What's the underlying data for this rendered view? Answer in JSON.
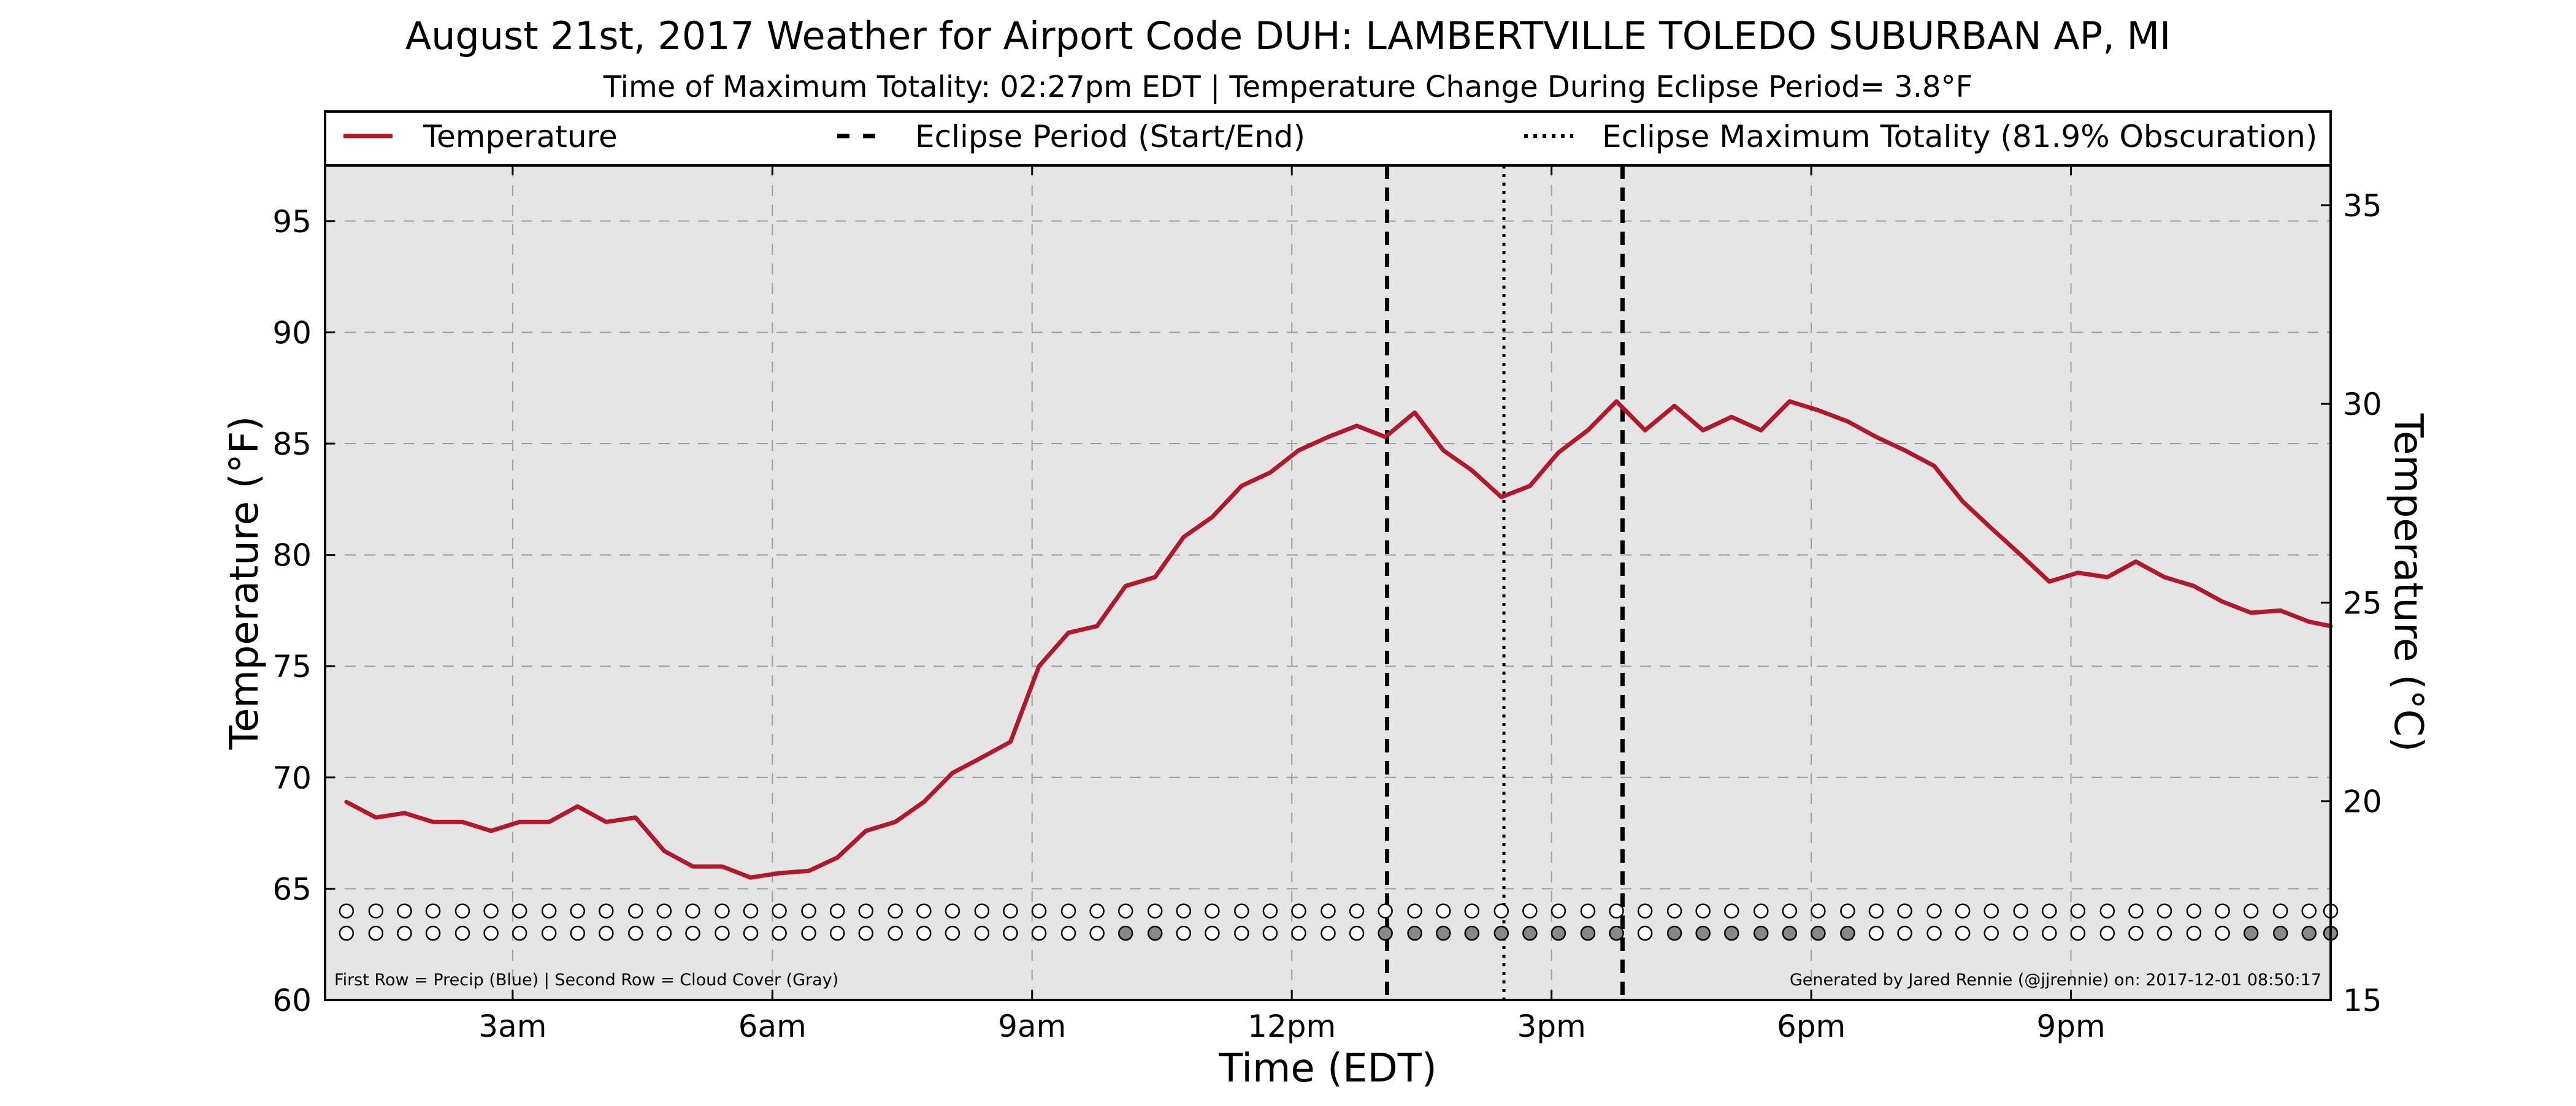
{
  "chart_data": {
    "type": "line",
    "title": "August 21st, 2017 Weather for Airport Code DUH: LAMBERTVILLE TOLEDO SUBURBAN AP, MI",
    "subtitle": "Time of Maximum Totality: 02:27pm EDT | Temperature Change During Eclipse Period= 3.8°F",
    "xlabel": "Time (EDT)",
    "ylabel_left": "Temperature (°F)",
    "ylabel_right": "Temperature (°C)",
    "xlim": [
      0.833,
      24.0
    ],
    "ylim_left": [
      60,
      97.5
    ],
    "ylim_right": [
      15,
      36
    ],
    "x_ticks": [
      3,
      6,
      9,
      12,
      15,
      18,
      21
    ],
    "x_tick_labels": [
      "3am",
      "6am",
      "9am",
      "12pm",
      "3pm",
      "6pm",
      "9pm"
    ],
    "y_ticks_left": [
      60,
      65,
      70,
      75,
      80,
      85,
      90,
      95
    ],
    "y_ticks_right": [
      15,
      20,
      25,
      30,
      35
    ],
    "grid": true,
    "legend_placement": "top (above plot)",
    "legend": [
      {
        "label": "Temperature",
        "style": "solid",
        "color": "#b2182b"
      },
      {
        "label": "Eclipse Period (Start/End)",
        "style": "dashed",
        "color": "#000000"
      },
      {
        "label": "Eclipse Maximum Totality (81.9% Obscuration)",
        "style": "dotted",
        "color": "#000000"
      }
    ],
    "series": [
      {
        "name": "Temperature",
        "color": "#b2182b",
        "x": [
          1.08,
          1.42,
          1.75,
          2.08,
          2.42,
          2.75,
          3.08,
          3.42,
          3.75,
          4.08,
          4.42,
          4.75,
          5.08,
          5.42,
          5.75,
          6.08,
          6.42,
          6.75,
          7.08,
          7.42,
          7.75,
          8.08,
          8.42,
          8.75,
          9.08,
          9.42,
          9.75,
          10.08,
          10.42,
          10.75,
          11.08,
          11.42,
          11.75,
          12.08,
          12.42,
          12.75,
          13.08,
          13.42,
          13.75,
          14.08,
          14.42,
          14.75,
          15.08,
          15.42,
          15.75,
          16.08,
          16.42,
          16.75,
          17.08,
          17.42,
          17.75,
          18.08,
          18.42,
          18.75,
          19.08,
          19.42,
          19.75,
          20.08,
          20.42,
          20.75,
          21.08,
          21.42,
          21.75,
          22.08,
          22.42,
          22.75,
          23.08,
          23.42,
          23.75,
          24.0
        ],
        "values": [
          68.9,
          68.2,
          68.4,
          68.0,
          68.0,
          67.6,
          68.0,
          68.0,
          68.7,
          68.0,
          68.2,
          66.7,
          66.0,
          66.0,
          65.5,
          65.7,
          65.8,
          66.4,
          67.6,
          68.0,
          68.9,
          70.2,
          70.9,
          71.6,
          75.0,
          76.5,
          76.8,
          78.6,
          79.0,
          80.8,
          81.7,
          83.1,
          83.7,
          84.7,
          85.3,
          85.8,
          85.3,
          86.4,
          84.7,
          83.8,
          82.6,
          83.1,
          84.6,
          85.6,
          86.9,
          85.6,
          86.7,
          85.6,
          86.2,
          85.6,
          86.9,
          86.5,
          86.0,
          85.3,
          84.7,
          84.0,
          82.4,
          81.2,
          80.0,
          78.8,
          79.2,
          79.0,
          79.7,
          79.0,
          78.6,
          77.9,
          77.4,
          77.5,
          77.0,
          76.8
        ]
      }
    ],
    "vlines": [
      {
        "label": "Eclipse Period (Start/End)",
        "x": 13.1,
        "style": "dashed"
      },
      {
        "label": "Eclipse Maximum Totality (81.9% Obscuration)",
        "x": 14.45,
        "style": "dotted"
      },
      {
        "label": "Eclipse Period (Start/End)",
        "x": 15.82,
        "style": "dashed"
      }
    ],
    "indicator_rows": {
      "precip_y": 64,
      "cloud_y": 63,
      "x": [
        1.08,
        1.42,
        1.75,
        2.08,
        2.42,
        2.75,
        3.08,
        3.42,
        3.75,
        4.08,
        4.42,
        4.75,
        5.08,
        5.42,
        5.75,
        6.08,
        6.42,
        6.75,
        7.08,
        7.42,
        7.75,
        8.08,
        8.42,
        8.75,
        9.08,
        9.42,
        9.75,
        10.08,
        10.42,
        10.75,
        11.08,
        11.42,
        11.75,
        12.08,
        12.42,
        12.75,
        13.08,
        13.42,
        13.75,
        14.08,
        14.42,
        14.75,
        15.08,
        15.42,
        15.75,
        16.08,
        16.42,
        16.75,
        17.08,
        17.42,
        17.75,
        18.08,
        18.42,
        18.75,
        19.08,
        19.42,
        19.75,
        20.08,
        20.42,
        20.75,
        21.08,
        21.42,
        21.75,
        22.08,
        22.42,
        22.75,
        23.08,
        23.42,
        23.75,
        24.0
      ],
      "precip_filled": [
        0,
        0,
        0,
        0,
        0,
        0,
        0,
        0,
        0,
        0,
        0,
        0,
        0,
        0,
        0,
        0,
        0,
        0,
        0,
        0,
        0,
        0,
        0,
        0,
        0,
        0,
        0,
        0,
        0,
        0,
        0,
        0,
        0,
        0,
        0,
        0,
        0,
        0,
        0,
        0,
        0,
        0,
        0,
        0,
        0,
        0,
        0,
        0,
        0,
        0,
        0,
        0,
        0,
        0,
        0,
        0,
        0,
        0,
        0,
        0,
        0,
        0,
        0,
        0,
        0,
        0,
        0,
        0,
        0,
        0
      ],
      "cloud_filled": [
        0,
        0,
        0,
        0,
        0,
        0,
        0,
        0,
        0,
        0,
        0,
        0,
        0,
        0,
        0,
        0,
        0,
        0,
        0,
        0,
        0,
        0,
        0,
        0,
        0,
        0,
        0,
        1,
        1,
        0,
        0,
        0,
        0,
        0,
        0,
        0,
        1,
        1,
        1,
        1,
        1,
        1,
        1,
        1,
        1,
        0,
        1,
        1,
        1,
        1,
        1,
        1,
        1,
        0,
        0,
        0,
        0,
        0,
        0,
        0,
        0,
        0,
        0,
        0,
        0,
        0,
        1,
        1,
        1,
        1
      ]
    },
    "footnote_left": "First Row = Precip (Blue) | Second Row = Cloud Cover (Gray)",
    "footnote_right": "Generated by Jared Rennie (@jjrennie) on: 2017-12-01 08:50:17"
  },
  "colors": {
    "plot_background": "#e5e5e5",
    "temperature_line": "#b2182b",
    "grid": "#9e9e9e",
    "cloud_fill": "#888888",
    "precip_fill": "#3a5fcd"
  }
}
